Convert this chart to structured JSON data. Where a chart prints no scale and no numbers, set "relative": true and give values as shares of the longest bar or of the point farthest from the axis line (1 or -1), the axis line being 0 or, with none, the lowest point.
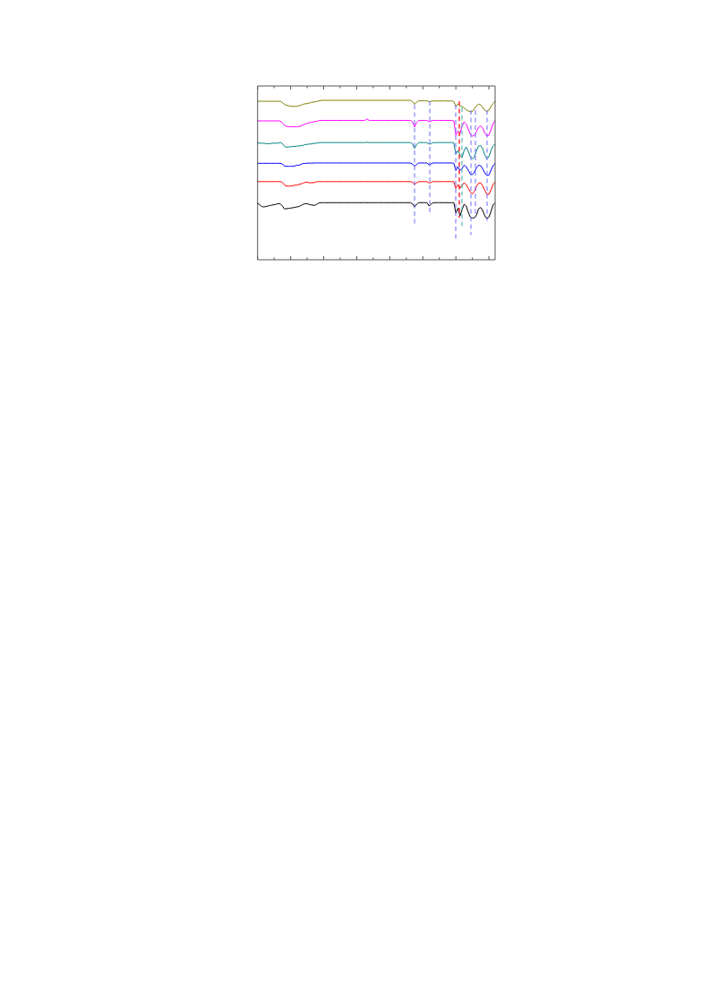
{
  "chart_data": {
    "type": "line",
    "relative": true,
    "marker": "none",
    "categories": [
      null,
      null,
      null,
      null,
      null,
      null,
      null,
      null,
      null,
      null,
      null,
      null,
      null,
      null,
      null,
      null,
      null,
      null,
      null,
      null,
      null,
      null,
      null,
      null,
      null,
      null,
      null,
      null,
      null,
      null,
      null,
      null,
      null,
      null,
      null,
      null,
      null,
      null,
      null,
      null,
      null,
      null,
      null,
      null,
      null,
      null,
      null,
      null,
      null,
      null,
      null,
      null,
      null,
      null,
      null,
      null,
      null,
      null,
      null,
      null,
      null,
      null,
      null,
      null,
      null,
      null,
      null,
      null,
      null,
      null,
      null,
      null,
      null,
      null,
      null,
      null,
      null,
      null,
      null,
      null,
      null,
      null,
      null,
      null,
      null,
      null,
      null,
      null,
      null,
      null,
      null,
      null,
      null,
      null,
      null,
      null,
      null,
      null,
      null,
      null,
      null,
      null,
      null,
      null,
      null,
      null,
      null,
      null,
      null,
      null,
      null,
      null,
      null,
      null,
      null,
      null
    ],
    "series": [
      {
        "color": "#808000",
        "values": [
          0.994,
          0.994,
          0.994,
          0.994,
          0.994,
          0.994,
          0.994,
          0.994,
          0.994,
          0.994,
          0.994,
          0.994,
          0.986,
          0.975,
          0.969,
          0.966,
          0.963,
          0.962,
          0.962,
          0.963,
          0.966,
          0.969,
          0.975,
          0.978,
          0.98,
          0.983,
          0.986,
          0.989,
          0.992,
          0.994,
          0.997,
          1,
          1,
          1,
          1,
          1,
          1,
          1,
          1,
          1,
          1,
          1,
          1,
          1,
          1,
          1,
          1,
          1,
          1,
          1,
          1,
          1,
          1,
          1,
          1,
          1,
          1,
          1,
          1,
          1,
          1,
          1,
          1,
          1,
          1,
          1,
          1,
          1,
          1,
          1,
          1,
          1,
          1,
          1,
          1,
          0.992,
          0.975,
          0.989,
          0.997,
          0.997,
          0.997,
          0.997,
          0.997,
          0.992,
          0.994,
          0.996,
          0.996,
          0.996,
          0.996,
          0.996,
          0.996,
          0.996,
          0.996,
          0.996,
          0.996,
          0.993,
          0.961,
          0.978,
          0.963,
          0.961,
          0.952,
          0.941,
          0.933,
          0.927,
          0.93,
          0.949,
          0.966,
          0.976,
          0.972,
          0.955,
          0.938,
          0.93,
          0.938,
          0.961,
          0.98,
          0.994
        ]
      },
      {
        "color": "#ff00ff",
        "values": [
          0.871,
          0.871,
          0.871,
          0.871,
          0.871,
          0.871,
          0.871,
          0.871,
          0.871,
          0.871,
          0.871,
          0.871,
          0.857,
          0.843,
          0.837,
          0.834,
          0.834,
          0.834,
          0.834,
          0.834,
          0.836,
          0.839,
          0.846,
          0.851,
          0.855,
          0.86,
          0.862,
          0.865,
          0.867,
          0.869,
          0.874,
          0.874,
          0.874,
          0.874,
          0.874,
          0.874,
          0.874,
          0.874,
          0.874,
          0.874,
          0.874,
          0.874,
          0.874,
          0.874,
          0.874,
          0.874,
          0.874,
          0.874,
          0.874,
          0.874,
          0.874,
          0.874,
          0.874,
          0.883,
          0.874,
          0.874,
          0.874,
          0.874,
          0.874,
          0.874,
          0.874,
          0.874,
          0.874,
          0.874,
          0.874,
          0.874,
          0.874,
          0.874,
          0.874,
          0.874,
          0.874,
          0.874,
          0.874,
          0.874,
          0.874,
          0.865,
          0.834,
          0.86,
          0.874,
          0.874,
          0.874,
          0.874,
          0.874,
          0.867,
          0.87,
          0.874,
          0.874,
          0.874,
          0.874,
          0.874,
          0.874,
          0.874,
          0.874,
          0.874,
          0.874,
          0.871,
          0.781,
          0.809,
          0.792,
          0.837,
          0.865,
          0.851,
          0.82,
          0.787,
          0.775,
          0.781,
          0.803,
          0.831,
          0.84,
          0.826,
          0.795,
          0.775,
          0.781,
          0.815,
          0.854,
          0.871
        ]
      },
      {
        "color": "#008080",
        "values": [
          0.734,
          0.731,
          0.731,
          0.731,
          0.728,
          0.728,
          0.728,
          0.731,
          0.731,
          0.731,
          0.731,
          0.736,
          0.728,
          0.711,
          0.706,
          0.708,
          0.708,
          0.711,
          0.711,
          0.713,
          0.713,
          0.717,
          0.717,
          0.723,
          0.723,
          0.726,
          0.726,
          0.73,
          0.73,
          0.733,
          0.735,
          0.735,
          0.735,
          0.735,
          0.735,
          0.735,
          0.735,
          0.735,
          0.735,
          0.735,
          0.735,
          0.735,
          0.735,
          0.735,
          0.735,
          0.735,
          0.735,
          0.735,
          0.735,
          0.735,
          0.735,
          0.735,
          0.735,
          0.737,
          0.735,
          0.735,
          0.735,
          0.735,
          0.735,
          0.735,
          0.735,
          0.735,
          0.735,
          0.735,
          0.735,
          0.735,
          0.735,
          0.735,
          0.735,
          0.735,
          0.735,
          0.735,
          0.735,
          0.735,
          0.735,
          0.728,
          0.699,
          0.722,
          0.735,
          0.735,
          0.735,
          0.735,
          0.735,
          0.725,
          0.728,
          0.735,
          0.735,
          0.735,
          0.735,
          0.735,
          0.735,
          0.735,
          0.735,
          0.735,
          0.735,
          0.733,
          0.663,
          0.685,
          0.657,
          0.64,
          0.685,
          0.708,
          0.68,
          0.646,
          0.632,
          0.646,
          0.685,
          0.713,
          0.716,
          0.697,
          0.657,
          0.635,
          0.646,
          0.685,
          0.713,
          0.725
        ]
      },
      {
        "color": "#0000ff",
        "values": [
          0.605,
          0.605,
          0.605,
          0.605,
          0.605,
          0.605,
          0.605,
          0.605,
          0.605,
          0.605,
          0.605,
          0.605,
          0.601,
          0.587,
          0.586,
          0.586,
          0.586,
          0.586,
          0.588,
          0.593,
          0.593,
          0.598,
          0.604,
          0.604,
          0.606,
          0.606,
          0.606,
          0.606,
          0.607,
          0.607,
          0.607,
          0.607,
          0.607,
          0.607,
          0.607,
          0.607,
          0.607,
          0.607,
          0.607,
          0.607,
          0.607,
          0.607,
          0.607,
          0.607,
          0.607,
          0.607,
          0.607,
          0.607,
          0.607,
          0.607,
          0.607,
          0.607,
          0.607,
          0.607,
          0.607,
          0.607,
          0.607,
          0.607,
          0.607,
          0.607,
          0.607,
          0.607,
          0.607,
          0.607,
          0.607,
          0.607,
          0.607,
          0.607,
          0.607,
          0.607,
          0.607,
          0.607,
          0.607,
          0.607,
          0.607,
          0.601,
          0.587,
          0.598,
          0.607,
          0.607,
          0.607,
          0.607,
          0.607,
          0.596,
          0.601,
          0.607,
          0.607,
          0.607,
          0.607,
          0.607,
          0.607,
          0.607,
          0.607,
          0.607,
          0.607,
          0.605,
          0.559,
          0.584,
          0.559,
          0.573,
          0.593,
          0.584,
          0.562,
          0.537,
          0.534,
          0.551,
          0.576,
          0.593,
          0.59,
          0.57,
          0.545,
          0.528,
          0.531,
          0.562,
          0.59,
          0.604
        ]
      },
      {
        "color": "#ff0000",
        "values": [
          0.49,
          0.49,
          0.49,
          0.49,
          0.49,
          0.49,
          0.49,
          0.49,
          0.49,
          0.49,
          0.49,
          0.49,
          0.486,
          0.469,
          0.462,
          0.462,
          0.462,
          0.464,
          0.468,
          0.468,
          0.472,
          0.476,
          0.48,
          0.486,
          0.486,
          0.483,
          0.483,
          0.483,
          0.487,
          0.49,
          0.49,
          0.49,
          0.49,
          0.49,
          0.49,
          0.49,
          0.49,
          0.49,
          0.49,
          0.49,
          0.49,
          0.49,
          0.49,
          0.49,
          0.49,
          0.49,
          0.49,
          0.49,
          0.49,
          0.49,
          0.49,
          0.49,
          0.49,
          0.49,
          0.49,
          0.49,
          0.49,
          0.49,
          0.49,
          0.49,
          0.49,
          0.49,
          0.49,
          0.49,
          0.49,
          0.49,
          0.49,
          0.49,
          0.49,
          0.49,
          0.49,
          0.49,
          0.49,
          0.49,
          0.49,
          0.486,
          0.472,
          0.483,
          0.49,
          0.49,
          0.49,
          0.49,
          0.49,
          0.481,
          0.486,
          0.49,
          0.49,
          0.49,
          0.49,
          0.49,
          0.49,
          0.49,
          0.49,
          0.49,
          0.49,
          0.49,
          0.447,
          0.472,
          0.449,
          0.466,
          0.483,
          0.472,
          0.449,
          0.424,
          0.412,
          0.43,
          0.461,
          0.48,
          0.483,
          0.463,
          0.435,
          0.41,
          0.41,
          0.438,
          0.472,
          0.487
        ]
      },
      {
        "color": "#000000",
        "values": [
          0.355,
          0.345,
          0.334,
          0.331,
          0.334,
          0.337,
          0.34,
          0.343,
          0.345,
          0.348,
          0.352,
          0.351,
          0.337,
          0.319,
          0.32,
          0.322,
          0.324,
          0.326,
          0.329,
          0.331,
          0.334,
          0.34,
          0.347,
          0.352,
          0.351,
          0.347,
          0.344,
          0.341,
          0.343,
          0.351,
          0.357,
          0.358,
          0.358,
          0.358,
          0.358,
          0.358,
          0.358,
          0.358,
          0.358,
          0.358,
          0.358,
          0.358,
          0.358,
          0.358,
          0.358,
          0.358,
          0.358,
          0.358,
          0.358,
          0.358,
          0.358,
          0.358,
          0.358,
          0.358,
          0.358,
          0.358,
          0.358,
          0.358,
          0.358,
          0.358,
          0.358,
          0.358,
          0.358,
          0.358,
          0.358,
          0.358,
          0.358,
          0.358,
          0.358,
          0.358,
          0.358,
          0.358,
          0.358,
          0.358,
          0.358,
          0.351,
          0.331,
          0.348,
          0.358,
          0.358,
          0.358,
          0.358,
          0.358,
          0.337,
          0.348,
          0.358,
          0.358,
          0.358,
          0.358,
          0.358,
          0.358,
          0.358,
          0.358,
          0.358,
          0.358,
          0.358,
          0.292,
          0.323,
          0.275,
          0.315,
          0.348,
          0.337,
          0.298,
          0.267,
          0.261,
          0.264,
          0.281,
          0.32,
          0.328,
          0.309,
          0.275,
          0.258,
          0.267,
          0.303,
          0.343,
          0.357
        ]
      }
    ]
  }
}
